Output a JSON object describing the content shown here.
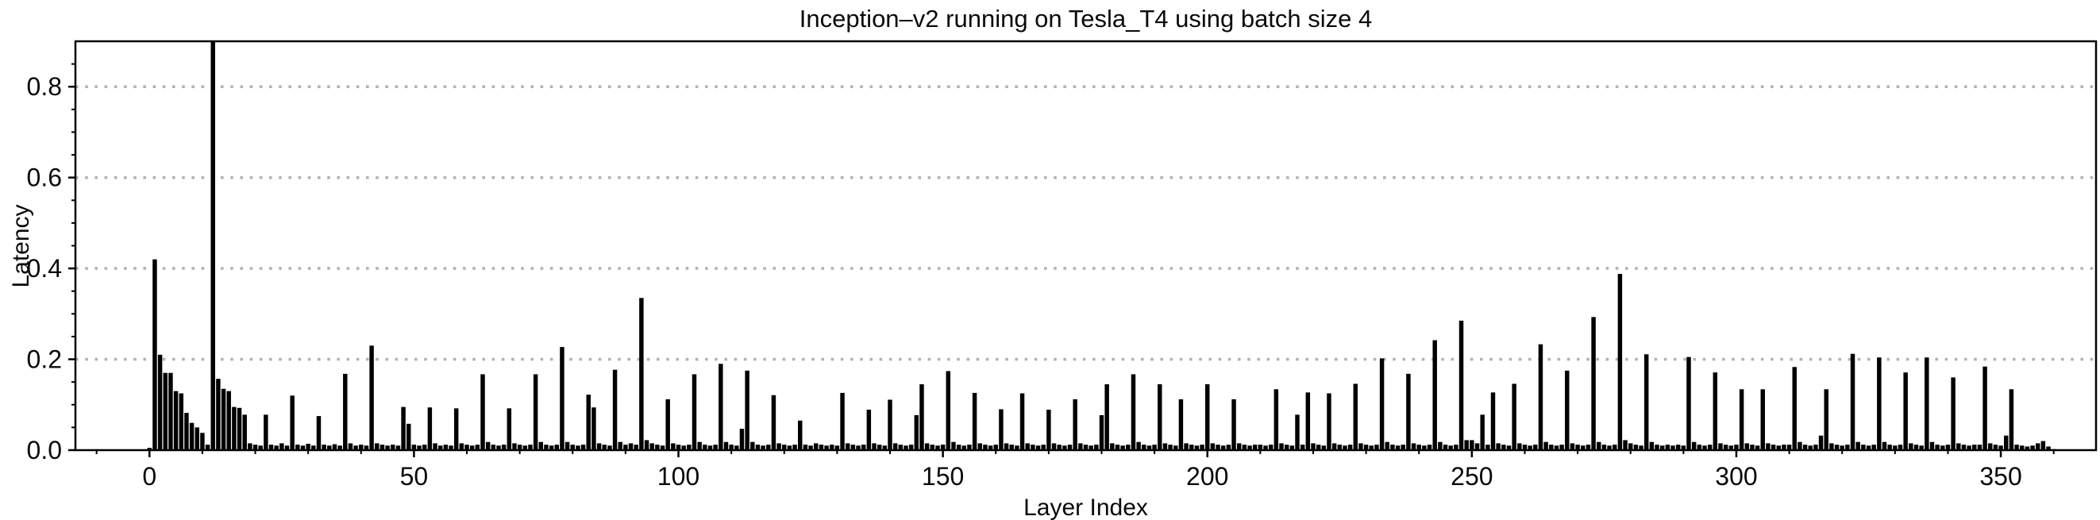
{
  "colors": {
    "background": "#ffffff",
    "bar": "#000000",
    "grid": "#b3b3b3",
    "spine": "#000000",
    "text": "#0a0a0a"
  },
  "chart_data": {
    "type": "bar",
    "title": "Inception–v2 running on Tesla_T4 using batch size 4",
    "xlabel": "Layer Index",
    "ylabel": "Latency",
    "xlim": [
      -14,
      368
    ],
    "ylim": [
      0,
      0.9
    ],
    "x_ticks": [
      0,
      50,
      100,
      150,
      200,
      250,
      300,
      350
    ],
    "y_ticks": [
      0,
      0.2,
      0.4,
      0.6,
      0.8
    ],
    "x_minor_step": 10,
    "y_minor_step": 0.05,
    "grid": {
      "axis": "y",
      "style": "dotted",
      "on_ticks": [
        0.2,
        0.4,
        0.6,
        0.8
      ]
    },
    "legend": "none",
    "bar_width_fraction": 0.82,
    "clipped_bars": {
      "12": "bar extends beyond top of axes, value >= 0.9 (clipped)"
    },
    "x_start": 0,
    "values": [
      0.005,
      0.42,
      0.21,
      0.17,
      0.17,
      0.13,
      0.125,
      0.082,
      0.06,
      0.05,
      0.038,
      0.012,
      0.9,
      0.157,
      0.135,
      0.13,
      0.095,
      0.093,
      0.078,
      0.015,
      0.012,
      0.01,
      0.078,
      0.012,
      0.01,
      0.015,
      0.01,
      0.12,
      0.012,
      0.01,
      0.014,
      0.01,
      0.075,
      0.012,
      0.01,
      0.013,
      0.01,
      0.168,
      0.015,
      0.01,
      0.012,
      0.01,
      0.23,
      0.015,
      0.012,
      0.01,
      0.012,
      0.01,
      0.095,
      0.058,
      0.012,
      0.01,
      0.012,
      0.094,
      0.015,
      0.01,
      0.012,
      0.01,
      0.092,
      0.015,
      0.012,
      0.01,
      0.012,
      0.167,
      0.018,
      0.012,
      0.01,
      0.012,
      0.092,
      0.015,
      0.012,
      0.01,
      0.012,
      0.167,
      0.018,
      0.012,
      0.01,
      0.012,
      0.227,
      0.018,
      0.012,
      0.01,
      0.012,
      0.122,
      0.094,
      0.015,
      0.012,
      0.01,
      0.177,
      0.018,
      0.012,
      0.015,
      0.012,
      0.335,
      0.022,
      0.015,
      0.012,
      0.01,
      0.112,
      0.015,
      0.012,
      0.01,
      0.012,
      0.167,
      0.018,
      0.012,
      0.01,
      0.012,
      0.19,
      0.018,
      0.012,
      0.01,
      0.047,
      0.175,
      0.018,
      0.012,
      0.01,
      0.012,
      0.121,
      0.015,
      0.012,
      0.01,
      0.012,
      0.065,
      0.012,
      0.01,
      0.015,
      0.012,
      0.01,
      0.012,
      0.01,
      0.126,
      0.015,
      0.012,
      0.01,
      0.012,
      0.089,
      0.015,
      0.012,
      0.01,
      0.111,
      0.015,
      0.012,
      0.01,
      0.012,
      0.077,
      0.145,
      0.015,
      0.012,
      0.01,
      0.012,
      0.174,
      0.018,
      0.012,
      0.01,
      0.012,
      0.126,
      0.015,
      0.012,
      0.01,
      0.012,
      0.09,
      0.015,
      0.012,
      0.01,
      0.125,
      0.015,
      0.012,
      0.01,
      0.012,
      0.089,
      0.015,
      0.012,
      0.01,
      0.012,
      0.112,
      0.015,
      0.012,
      0.01,
      0.012,
      0.077,
      0.145,
      0.015,
      0.012,
      0.01,
      0.012,
      0.167,
      0.018,
      0.012,
      0.01,
      0.012,
      0.145,
      0.015,
      0.012,
      0.01,
      0.112,
      0.015,
      0.012,
      0.01,
      0.012,
      0.145,
      0.015,
      0.012,
      0.01,
      0.012,
      0.112,
      0.015,
      0.012,
      0.01,
      0.012,
      0.012,
      0.01,
      0.012,
      0.134,
      0.015,
      0.012,
      0.01,
      0.078,
      0.012,
      0.127,
      0.015,
      0.012,
      0.01,
      0.125,
      0.015,
      0.012,
      0.01,
      0.012,
      0.146,
      0.015,
      0.012,
      0.01,
      0.012,
      0.202,
      0.018,
      0.012,
      0.01,
      0.012,
      0.168,
      0.015,
      0.012,
      0.01,
      0.012,
      0.242,
      0.018,
      0.012,
      0.01,
      0.012,
      0.285,
      0.022,
      0.022,
      0.015,
      0.078,
      0.012,
      0.127,
      0.015,
      0.012,
      0.01,
      0.146,
      0.015,
      0.012,
      0.01,
      0.012,
      0.233,
      0.018,
      0.012,
      0.01,
      0.012,
      0.175,
      0.015,
      0.012,
      0.01,
      0.012,
      0.293,
      0.018,
      0.012,
      0.01,
      0.012,
      0.388,
      0.022,
      0.015,
      0.012,
      0.01,
      0.211,
      0.018,
      0.012,
      0.01,
      0.012,
      0.01,
      0.012,
      0.01,
      0.205,
      0.018,
      0.012,
      0.01,
      0.012,
      0.171,
      0.015,
      0.012,
      0.01,
      0.012,
      0.134,
      0.015,
      0.012,
      0.01,
      0.134,
      0.015,
      0.012,
      0.01,
      0.012,
      0.012,
      0.183,
      0.018,
      0.012,
      0.01,
      0.012,
      0.032,
      0.134,
      0.015,
      0.012,
      0.01,
      0.012,
      0.212,
      0.018,
      0.012,
      0.01,
      0.012,
      0.204,
      0.018,
      0.012,
      0.01,
      0.012,
      0.171,
      0.015,
      0.012,
      0.01,
      0.204,
      0.018,
      0.012,
      0.01,
      0.012,
      0.16,
      0.015,
      0.012,
      0.01,
      0.012,
      0.012,
      0.184,
      0.015,
      0.012,
      0.01,
      0.032,
      0.134,
      0.012,
      0.01,
      0.008,
      0.01,
      0.015,
      0.02,
      0.008,
      0.002
    ]
  }
}
